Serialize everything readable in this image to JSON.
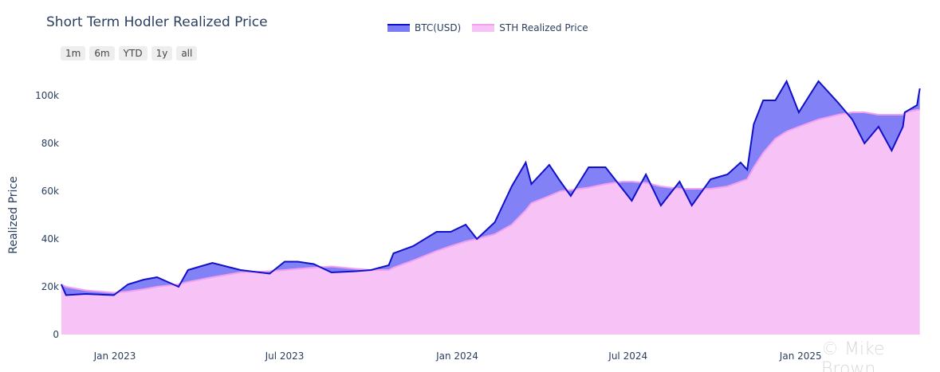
{
  "chart_data": {
    "type": "area",
    "title": "Short Term Hodler Realized Price",
    "ylabel": "Realized Price",
    "xlabel": "",
    "ylim": [
      0,
      105000
    ],
    "yticks": [
      0,
      20000,
      40000,
      60000,
      80000,
      100000
    ],
    "ytick_labels": [
      "0",
      "20k",
      "40k",
      "60k",
      "80k",
      "100k"
    ],
    "xticks": [
      "2023-01-01",
      "2023-07-01",
      "2024-01-01",
      "2024-07-01",
      "2025-01-01"
    ],
    "xtick_labels": [
      "Jan 2023",
      "Jul 2023",
      "Jan 2024",
      "Jul 2024",
      "Jan 2025"
    ],
    "grid": false,
    "legend_position": "top",
    "x": [
      "2022-11-05",
      "2022-11-10",
      "2022-12-01",
      "2022-12-31",
      "2023-01-15",
      "2023-02-01",
      "2023-02-15",
      "2023-03-10",
      "2023-03-20",
      "2023-04-15",
      "2023-05-15",
      "2023-06-15",
      "2023-07-01",
      "2023-07-15",
      "2023-08-01",
      "2023-08-20",
      "2023-09-15",
      "2023-10-01",
      "2023-10-20",
      "2023-10-25",
      "2023-11-15",
      "2023-12-10",
      "2023-12-25",
      "2024-01-10",
      "2024-01-22",
      "2024-02-10",
      "2024-02-28",
      "2024-03-14",
      "2024-03-20",
      "2024-04-08",
      "2024-04-20",
      "2024-05-01",
      "2024-05-20",
      "2024-06-07",
      "2024-06-25",
      "2024-07-05",
      "2024-07-20",
      "2024-08-05",
      "2024-08-25",
      "2024-09-07",
      "2024-09-27",
      "2024-10-15",
      "2024-10-29",
      "2024-11-05",
      "2024-11-12",
      "2024-11-22",
      "2024-12-05",
      "2024-12-17",
      "2024-12-30",
      "2025-01-20",
      "2025-02-10",
      "2025-02-25",
      "2025-03-10",
      "2025-03-25",
      "2025-04-08",
      "2025-04-20",
      "2025-04-22",
      "2025-05-05",
      "2025-05-08"
    ],
    "series": [
      {
        "name": "BTC(USD)",
        "color": "#1010c8",
        "fill": "#7b7bf5",
        "values": [
          21000,
          16500,
          17000,
          16500,
          21000,
          23000,
          24000,
          20000,
          27000,
          30000,
          27000,
          25500,
          30500,
          30500,
          29500,
          26000,
          26500,
          27000,
          29000,
          34000,
          37000,
          43000,
          43000,
          46000,
          40000,
          47000,
          62000,
          72000,
          63000,
          71000,
          64000,
          58000,
          70000,
          70000,
          61000,
          56000,
          67000,
          54000,
          64000,
          54000,
          65000,
          67000,
          72000,
          69000,
          88000,
          98000,
          98000,
          106000,
          93000,
          106000,
          97000,
          90000,
          80000,
          87000,
          77000,
          87000,
          93000,
          96000,
          103000
        ]
      },
      {
        "name": "STH Realized Price",
        "color": "#f0a0ef",
        "fill": "#f7c2f6",
        "values": [
          21000,
          20000,
          18500,
          17500,
          18000,
          19000,
          20000,
          21000,
          22000,
          24000,
          26000,
          26500,
          27000,
          27500,
          28000,
          28500,
          27500,
          27000,
          27000,
          28000,
          31000,
          35000,
          37000,
          39000,
          40000,
          42000,
          46000,
          52000,
          55000,
          58000,
          60000,
          60500,
          61500,
          63000,
          64000,
          64000,
          63500,
          62000,
          61000,
          61000,
          61000,
          62000,
          64000,
          65000,
          70000,
          76000,
          82000,
          85000,
          87000,
          90000,
          92000,
          93000,
          93000,
          92000,
          92000,
          92000,
          93000,
          94000,
          94000
        ]
      }
    ]
  },
  "range_selector": [
    "1m",
    "6m",
    "YTD",
    "1y",
    "all"
  ],
  "watermark": "© Mike Brown"
}
